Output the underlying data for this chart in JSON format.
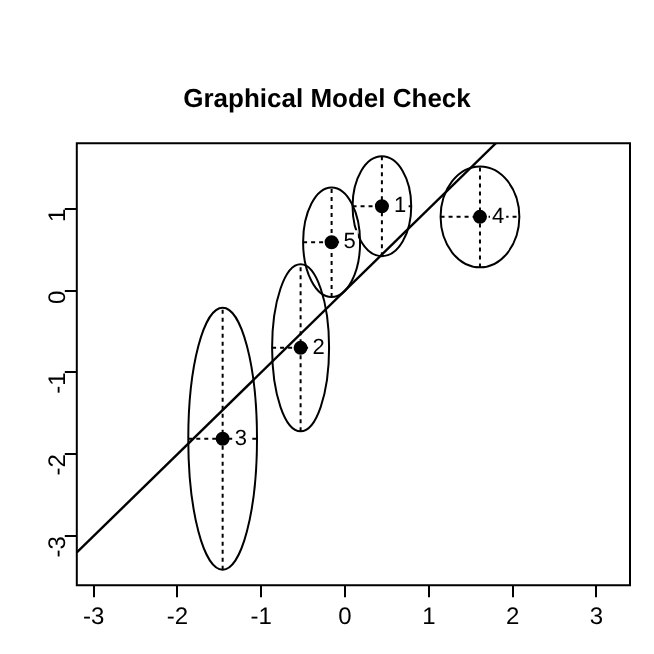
{
  "chart_data": {
    "type": "scatter",
    "title": "Graphical Model Check",
    "series": [
      {
        "color": "#000000",
        "marker": "circle",
        "x": [
          0.44,
          -0.53,
          -1.46,
          1.61,
          -0.16
        ],
        "values": [
          1.03,
          -0.7,
          -1.81,
          0.9,
          0.59
        ],
        "errors": [
          0.61,
          1.02,
          1.6,
          0.62,
          0.67
        ],
        "xerrors": [
          0.35,
          0.34,
          0.41,
          0.47,
          0.34
        ]
      },
      {
        "type": "line",
        "color": "#000000",
        "x": [
          -3.2,
          1.8
        ],
        "values": [
          -3.2,
          1.8
        ]
      }
    ],
    "annotations": [
      {
        "text": "1",
        "x": 0.44,
        "y": 1.03
      },
      {
        "text": "2",
        "x": -0.53,
        "y": -0.7
      },
      {
        "text": "3",
        "x": -1.46,
        "y": -1.81
      },
      {
        "text": "4",
        "x": 1.61,
        "y": 0.9
      },
      {
        "text": "5",
        "x": -0.16,
        "y": 0.59
      }
    ],
    "xlim": [
      -3.2,
      3.4
    ],
    "ylim": [
      -3.6,
      1.8
    ],
    "xticks": [
      -3,
      -2,
      -1,
      0,
      1,
      2,
      3
    ],
    "yticks": [
      -3,
      -2,
      -1,
      0,
      1
    ],
    "grid": false,
    "legend": false
  }
}
